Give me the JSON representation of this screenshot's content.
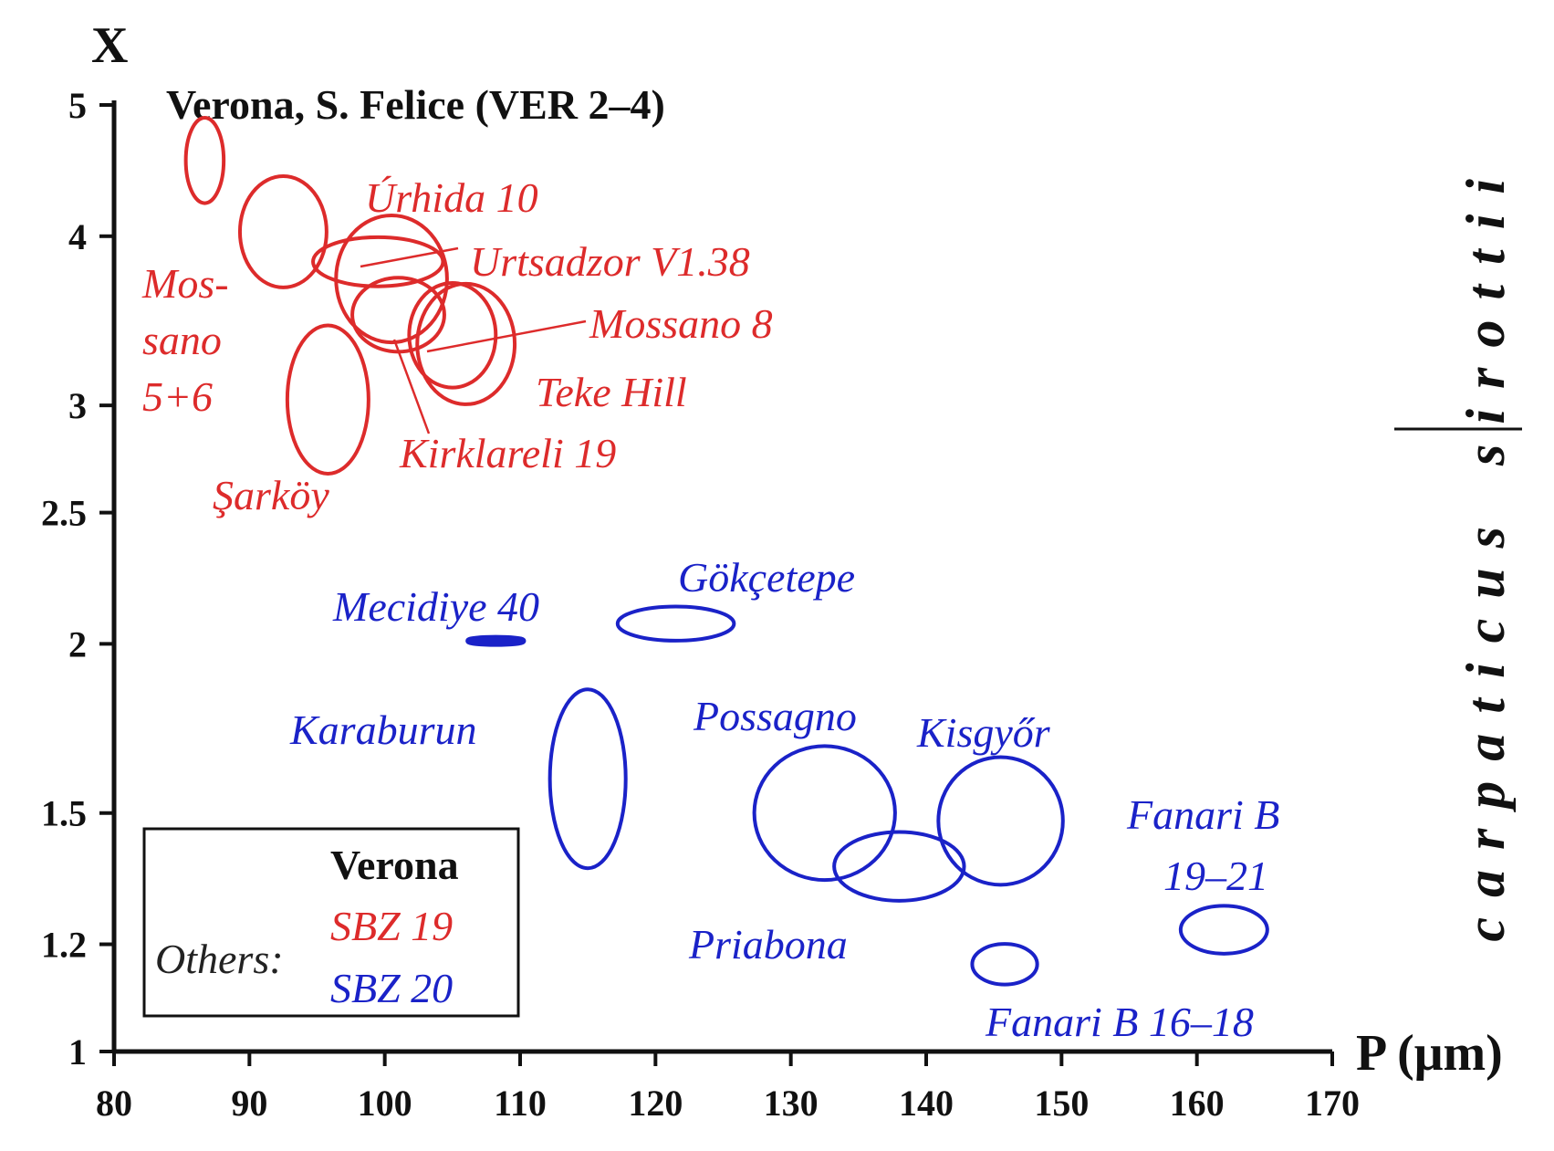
{
  "chart_data": {
    "type": "scatter",
    "title": "Verona, S. Felice (VER 2–4)",
    "xlabel": "P (μm)",
    "ylabel": "X",
    "xlim": [
      80,
      170
    ],
    "ylim": [
      1,
      5
    ],
    "y_scale": "log",
    "x_ticks": [
      "80",
      "90",
      "100",
      "110",
      "120",
      "130",
      "140",
      "150",
      "160",
      "170"
    ],
    "y_ticks": [
      "1",
      "1.2",
      "1.5",
      "2",
      "2.5",
      "3",
      "4",
      "5"
    ],
    "grid": false,
    "side_labels": {
      "left": "carpaticus",
      "right": "sirottii"
    },
    "colors": {
      "SBZ 19": "#dd2b2b",
      "SBZ 20": "#1a22c8",
      "Verona": "#111111"
    },
    "legend": {
      "position": "bottom-left",
      "verona": "Verona",
      "others": "Others:",
      "sbz19": "SBZ 19",
      "sbz20": "SBZ 20"
    },
    "samples": [
      {
        "name": "Verona, S. Felice (VER 2–4)",
        "group": "SBZ 19",
        "x": 86.7,
        "y": 4.55,
        "rx": 1.4,
        "ry": 0.33
      },
      {
        "name": "Mos-sano 5+6",
        "group": "SBZ 19",
        "x": 92.5,
        "y": 4.03,
        "rx": 3.2,
        "ry": 0.38
      },
      {
        "name": "Úrhida 10",
        "group": "SBZ 19",
        "x": 99.5,
        "y": 3.83,
        "rx": 4.8,
        "ry": 0.16
      },
      {
        "name": "Urtsadzor V1.38",
        "group": "SBZ 19",
        "x": 100.5,
        "y": 3.72,
        "rx": 4.1,
        "ry": 0.4
      },
      {
        "name": "Kirklareli 19",
        "group": "SBZ 19",
        "x": 101.0,
        "y": 3.5,
        "rx": 3.4,
        "ry": 0.22
      },
      {
        "name": "Mossano 8",
        "group": "SBZ 19",
        "x": 105.0,
        "y": 3.38,
        "rx": 3.2,
        "ry": 0.3
      },
      {
        "name": "Teke Hill",
        "group": "SBZ 19",
        "x": 106.0,
        "y": 3.33,
        "rx": 3.6,
        "ry": 0.34
      },
      {
        "name": "Şarköy",
        "group": "SBZ 19",
        "x": 95.8,
        "y": 3.03,
        "rx": 3.0,
        "ry": 0.38
      },
      {
        "name": "Mecidiye 40",
        "group": "SBZ 20",
        "x": 108.2,
        "y": 2.01,
        "rx": 2.0,
        "ry": 0.006
      },
      {
        "name": "Gökçetepe",
        "group": "SBZ 20",
        "x": 121.5,
        "y": 2.07,
        "rx": 4.3,
        "ry": 0.06
      },
      {
        "name": "Karaburun",
        "group": "SBZ 20",
        "x": 115.0,
        "y": 1.59,
        "rx": 2.8,
        "ry": 0.24
      },
      {
        "name": "Possagno",
        "group": "SBZ 20",
        "x": 132.5,
        "y": 1.5,
        "rx": 5.2,
        "ry": 0.17
      },
      {
        "name": "Priabona",
        "group": "SBZ 20",
        "x": 138.0,
        "y": 1.37,
        "rx": 4.8,
        "ry": 0.08
      },
      {
        "name": "Kisgyőr",
        "group": "SBZ 20",
        "x": 145.5,
        "y": 1.48,
        "rx": 4.6,
        "ry": 0.16
      },
      {
        "name": "Fanari B 16–18",
        "group": "SBZ 20",
        "x": 145.8,
        "y": 1.16,
        "rx": 2.4,
        "ry": 0.04
      },
      {
        "name": "Fanari B 19–21",
        "group": "SBZ 20",
        "x": 162.0,
        "y": 1.23,
        "rx": 3.2,
        "ry": 0.05
      }
    ],
    "labels": [
      {
        "text": "Úrhida 10",
        "group": "SBZ 19"
      },
      {
        "text": "Urtsadzor V1.38",
        "group": "SBZ 19"
      },
      {
        "text": "Mossano 8",
        "group": "SBZ 19"
      },
      {
        "text": "Teke Hill",
        "group": "SBZ 19"
      },
      {
        "text": "Kirklareli 19",
        "group": "SBZ 19"
      },
      {
        "text": "Şarköy",
        "group": "SBZ 19"
      },
      {
        "text": "Mos-",
        "group": "SBZ 19"
      },
      {
        "text": "sano",
        "group": "SBZ 19"
      },
      {
        "text": "5+6",
        "group": "SBZ 19"
      },
      {
        "text": "Mecidiye 40",
        "group": "SBZ 20"
      },
      {
        "text": "Gökçetepe",
        "group": "SBZ 20"
      },
      {
        "text": "Karaburun",
        "group": "SBZ 20"
      },
      {
        "text": "Possagno",
        "group": "SBZ 20"
      },
      {
        "text": "Kisgyőr",
        "group": "SBZ 20"
      },
      {
        "text": "Priabona",
        "group": "SBZ 20"
      },
      {
        "text": "Fanari B",
        "group": "SBZ 20"
      },
      {
        "text": "19–21",
        "group": "SBZ 20"
      },
      {
        "text": "Fanari B 16–18",
        "group": "SBZ 20"
      }
    ]
  }
}
